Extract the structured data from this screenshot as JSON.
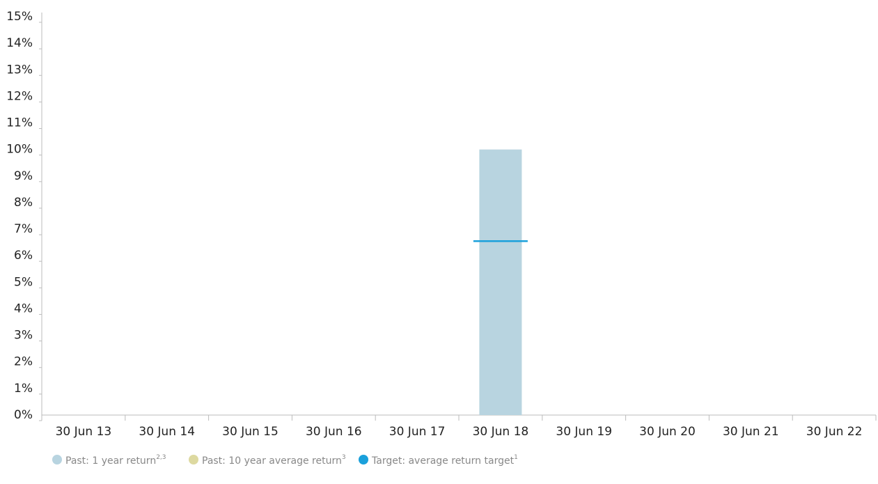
{
  "chart_data": {
    "type": "bar",
    "categories": [
      "30 Jun 13",
      "30 Jun 14",
      "30 Jun 15",
      "30 Jun 16",
      "30 Jun 17",
      "30 Jun 18",
      "30 Jun 19",
      "30 Jun 20",
      "30 Jun 21",
      "30 Jun 22"
    ],
    "series": [
      {
        "name": "Past: 1 year return",
        "footnote": "2,3",
        "color": "#b8d4e0",
        "values": [
          null,
          null,
          null,
          null,
          null,
          10,
          null,
          null,
          null,
          null
        ]
      },
      {
        "name": "Past: 10 year average return",
        "footnote": "3",
        "color": "#ddd9a0",
        "values": [
          null,
          null,
          null,
          null,
          null,
          null,
          null,
          null,
          null,
          null
        ]
      },
      {
        "name": "Target: average return target",
        "footnote": "1",
        "color": "#1aa0db",
        "values": [
          null,
          null,
          null,
          null,
          null,
          6.55,
          null,
          null,
          null,
          null
        ]
      }
    ],
    "ylim": [
      0,
      15
    ],
    "yticks": [
      {
        "value": 0,
        "label": "0%"
      },
      {
        "value": 1,
        "label": "1%"
      },
      {
        "value": 2,
        "label": "2%"
      },
      {
        "value": 3,
        "label": "3%"
      },
      {
        "value": 4,
        "label": "4%"
      },
      {
        "value": 5,
        "label": "5%"
      },
      {
        "value": 6,
        "label": "6%"
      },
      {
        "value": 7,
        "label": "7%"
      },
      {
        "value": 8,
        "label": "8%"
      },
      {
        "value": 9,
        "label": "9%"
      },
      {
        "value": 10,
        "label": "10%"
      },
      {
        "value": 11,
        "label": "11%"
      },
      {
        "value": 12,
        "label": "12%"
      },
      {
        "value": 13,
        "label": "13%"
      },
      {
        "value": 14,
        "label": "14%"
      },
      {
        "value": 15,
        "label": "15%"
      }
    ],
    "legend": "bottom-left"
  }
}
